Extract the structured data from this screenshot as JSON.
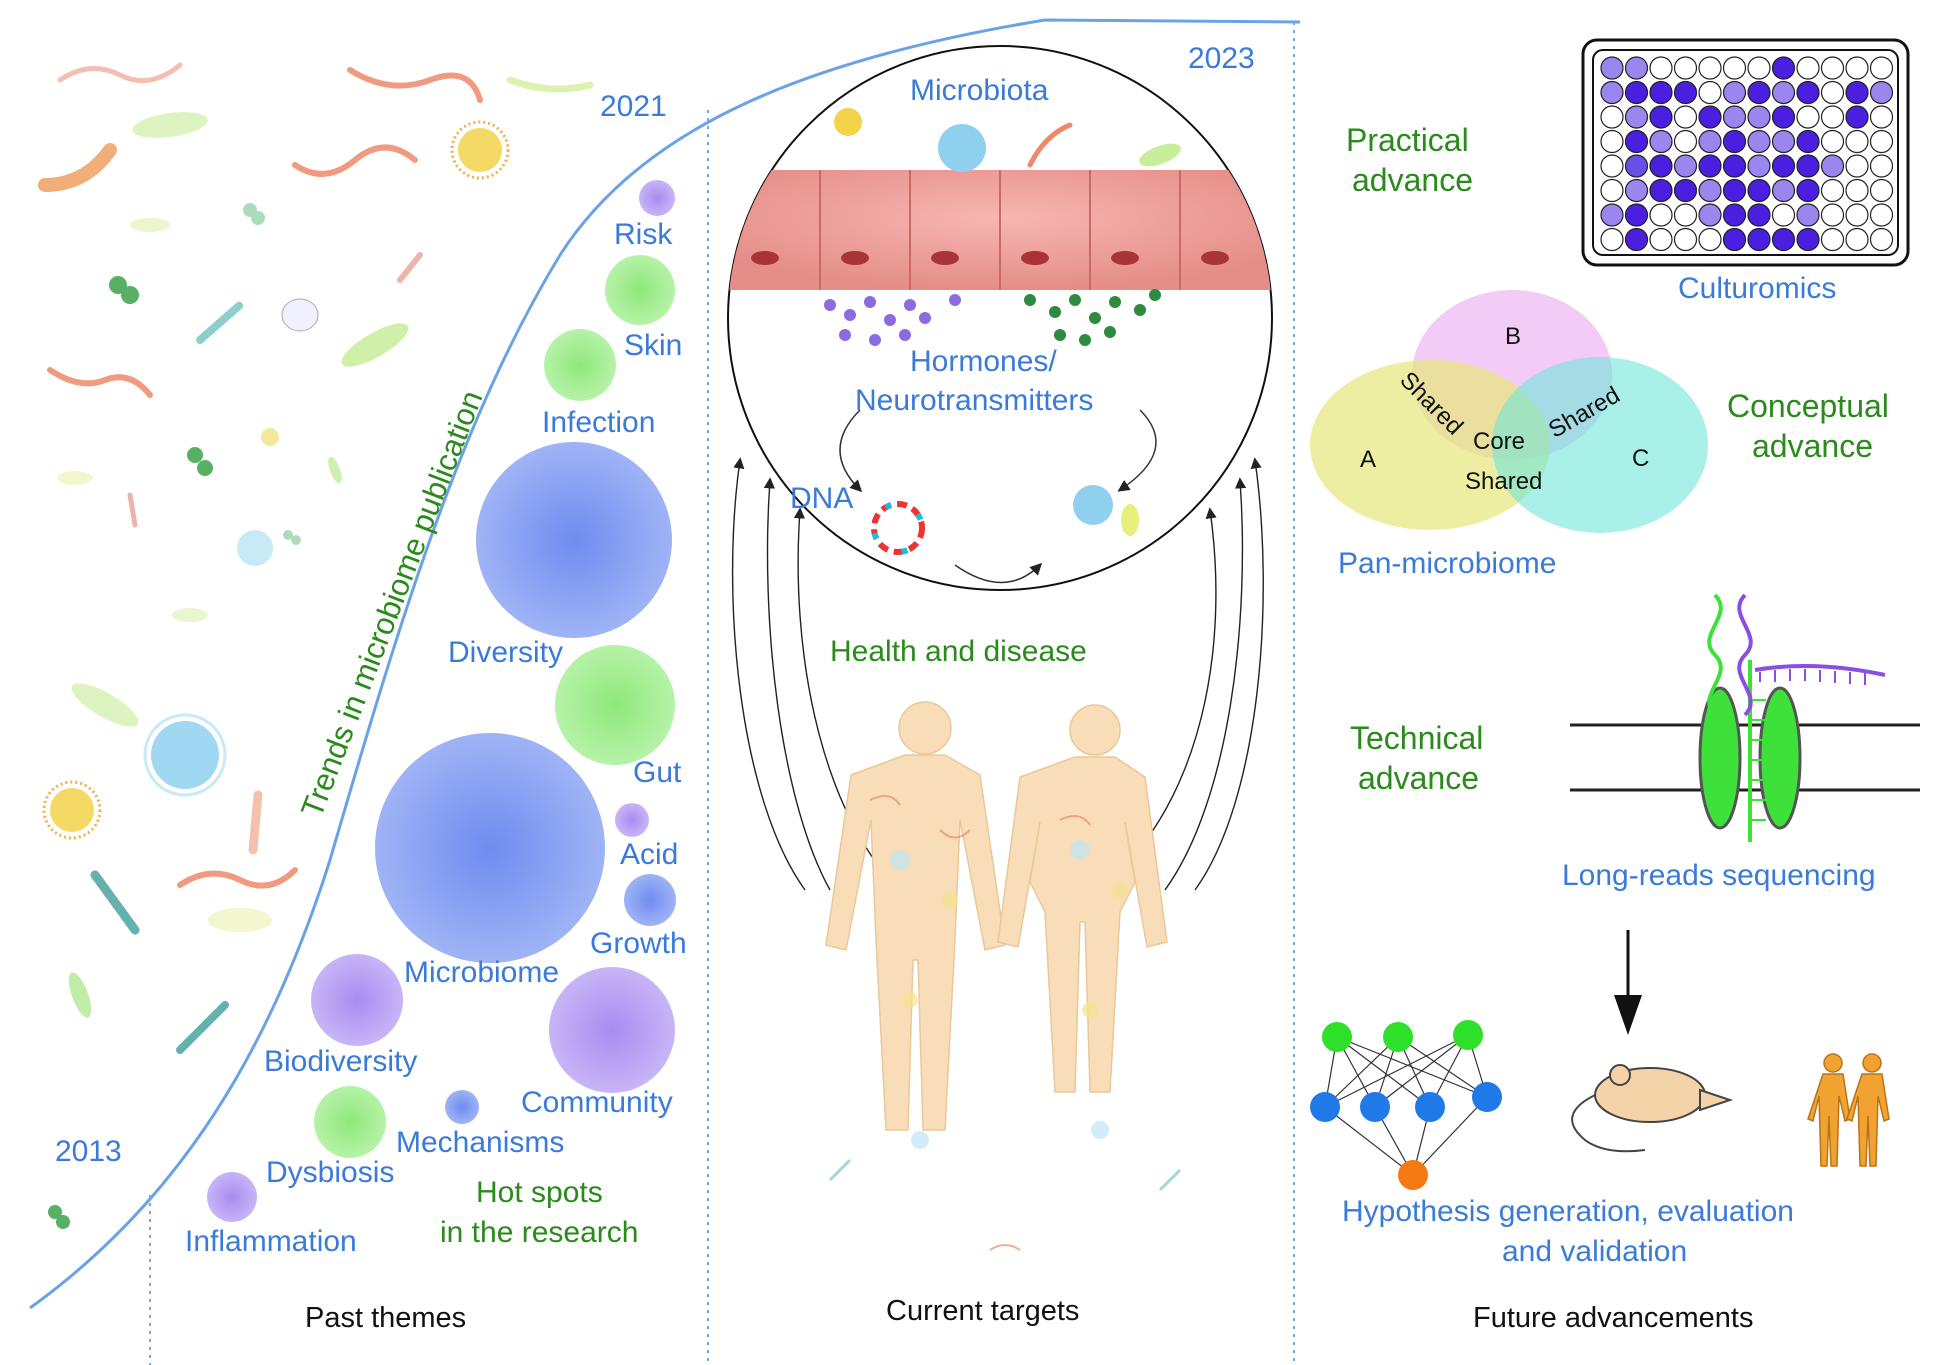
{
  "years": {
    "y2013": "2013",
    "y2021": "2021",
    "y2023": "2023"
  },
  "curve_label": "Trends in microbiome publication",
  "hotspots": {
    "caption_line1": "Hot spots",
    "caption_line2": "in the research",
    "bubbles": [
      {
        "label": "Risk",
        "color": "purple"
      },
      {
        "label": "Skin",
        "color": "green"
      },
      {
        "label": "Infection",
        "color": "green"
      },
      {
        "label": "Diversity",
        "color": "blue"
      },
      {
        "label": "Gut",
        "color": "green"
      },
      {
        "label": "Acid",
        "color": "purple"
      },
      {
        "label": "Growth",
        "color": "blue"
      },
      {
        "label": "Microbiome",
        "color": "blue"
      },
      {
        "label": "Biodiversity",
        "color": "purple"
      },
      {
        "label": "Community",
        "color": "purple"
      },
      {
        "label": "Mechanisms",
        "color": "blue"
      },
      {
        "label": "Dysbiosis",
        "color": "green"
      },
      {
        "label": "Inflammation",
        "color": "purple"
      }
    ]
  },
  "current": {
    "microbiota": "Microbiota",
    "hormones_line1": "Hormones/",
    "hormones_line2": "Neurotransmitters",
    "dna": "DNA",
    "health": "Health and disease"
  },
  "future": {
    "practical_line1": "Practical",
    "practical_line2": "advance",
    "culturomics": "Culturomics",
    "conceptual_line1": "Conceptual",
    "conceptual_line2": "advance",
    "venn": {
      "a": "A",
      "b": "B",
      "c": "C",
      "core": "Core",
      "shared1": "Shared",
      "shared2": "Shared",
      "shared3": "Shared"
    },
    "panmicrobiome": "Pan-microbiome",
    "technical_line1": "Technical",
    "technical_line2": "advance",
    "longreads": "Long-reads sequencing",
    "hypothesis_line1": "Hypothesis generation, evaluation",
    "hypothesis_line2": "and validation"
  },
  "sections": {
    "past": "Past themes",
    "current": "Current targets",
    "future": "Future advancements"
  },
  "colors": {
    "label_blue": "#3a7ad8",
    "label_green": "#2b8a1c",
    "divider": "#6ab0e8",
    "curve": "#6aa2e6"
  }
}
